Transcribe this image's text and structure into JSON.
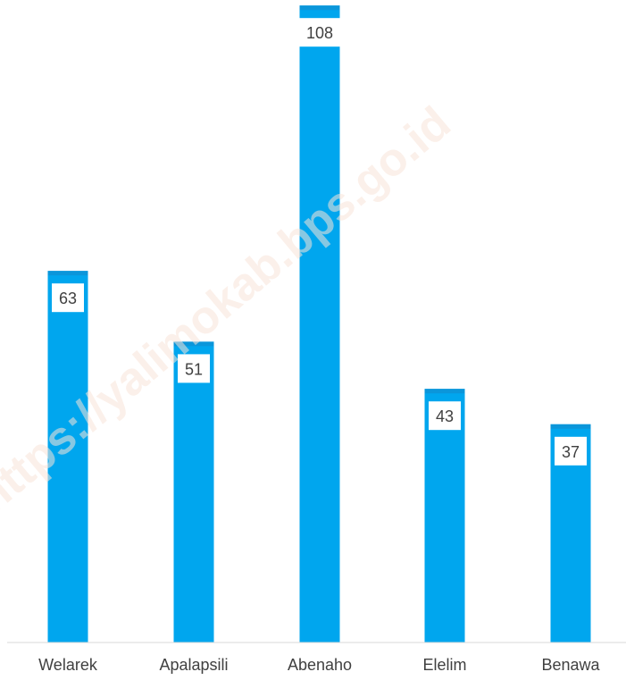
{
  "chart_data": {
    "type": "bar",
    "categories": [
      "Welarek",
      "Apalapsili",
      "Abenaho",
      "Elelim",
      "Benawa"
    ],
    "values": [
      63,
      51,
      108,
      43,
      37
    ],
    "data_labels": [
      "63",
      "51",
      "108",
      "43",
      "37"
    ],
    "title": "",
    "xlabel": "",
    "ylabel": "",
    "ylim": [
      0,
      110
    ],
    "grid": false,
    "legend": "none",
    "bar_color": "#00A6EE",
    "bar_cap_color": "#0B96DA",
    "label_box_color": "#ffffff",
    "label_text_color": "#404040"
  },
  "watermark": {
    "text": "https://yalimokab.bps.go.id",
    "color": "#f8e3d8"
  }
}
